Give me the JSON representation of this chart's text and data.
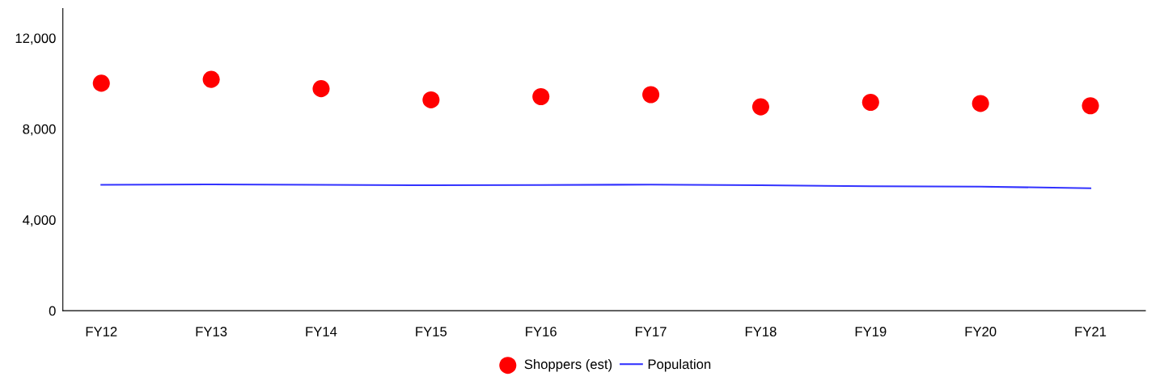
{
  "chart_data": {
    "type": "scatter",
    "categories": [
      "FY12",
      "FY13",
      "FY14",
      "FY15",
      "FY16",
      "FY17",
      "FY18",
      "FY19",
      "FY20",
      "FY21"
    ],
    "series": [
      {
        "name": "Shoppers (est)",
        "color": "#ff0000",
        "marker": "circle",
        "values": [
          10010,
          10180,
          9770,
          9280,
          9420,
          9510,
          8970,
          9170,
          9120,
          9020
        ]
      },
      {
        "name": "Population",
        "type": "line",
        "color": "#3333ff",
        "values": [
          5540,
          5560,
          5540,
          5520,
          5530,
          5550,
          5520,
          5480,
          5460,
          5390
        ]
      }
    ],
    "ylim": [
      0,
      13300
    ],
    "yticks": [
      0,
      {
        "value": 4000,
        "label": "4,000"
      },
      {
        "value": 8000,
        "label": "8,000"
      },
      {
        "value": 12000,
        "label": "12,000"
      }
    ],
    "grid": false,
    "legend": "bottom"
  }
}
